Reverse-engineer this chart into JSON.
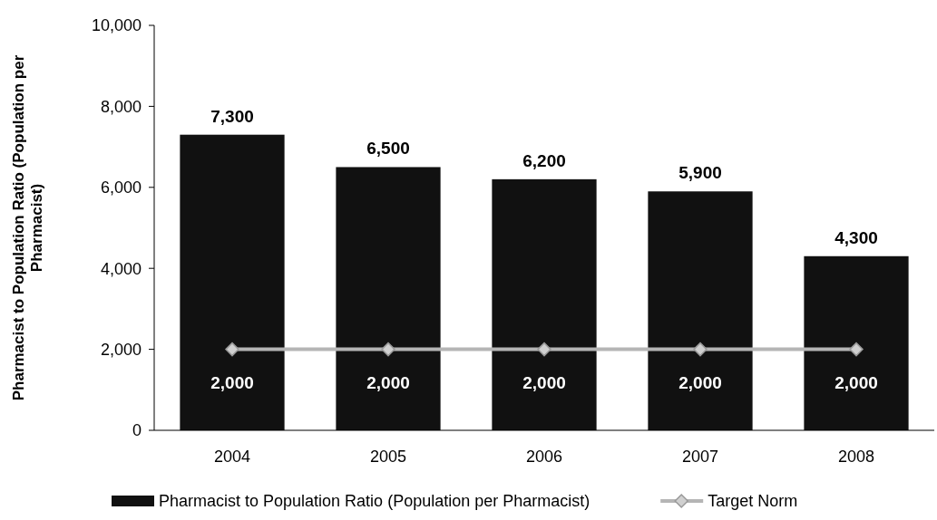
{
  "chart_data": {
    "type": "bar",
    "ylabel": "Pharmacist to Population Ratio (Population per Pharmacist)",
    "categories": [
      "2004",
      "2005",
      "2006",
      "2007",
      "2008"
    ],
    "series": [
      {
        "name": "Pharmacist to Population Ratio (Population per Pharmacist)",
        "color": "#111111",
        "values": [
          7300,
          6500,
          6200,
          5900,
          4300
        ],
        "value_labels": [
          "7,300",
          "6,500",
          "6,200",
          "5,900",
          "4,300"
        ]
      },
      {
        "name": "Target Norm",
        "type": "line",
        "color": "#b5b5b5",
        "marker": "diamond",
        "values": [
          2000,
          2000,
          2000,
          2000,
          2000
        ],
        "value_labels": [
          "2,000",
          "2,000",
          "2,000",
          "2,000",
          "2,000"
        ]
      }
    ],
    "ylim": [
      0,
      10000
    ],
    "yticks": [
      0,
      {
        "value": 2000,
        "label": "2,000"
      },
      {
        "value": 4000,
        "label": "4,000"
      },
      {
        "value": 6000,
        "label": "6,000"
      },
      {
        "value": 8000,
        "label": "8,000"
      },
      {
        "value": 10000,
        "label": "10,000"
      }
    ],
    "legend": "bottom",
    "grid": false
  }
}
